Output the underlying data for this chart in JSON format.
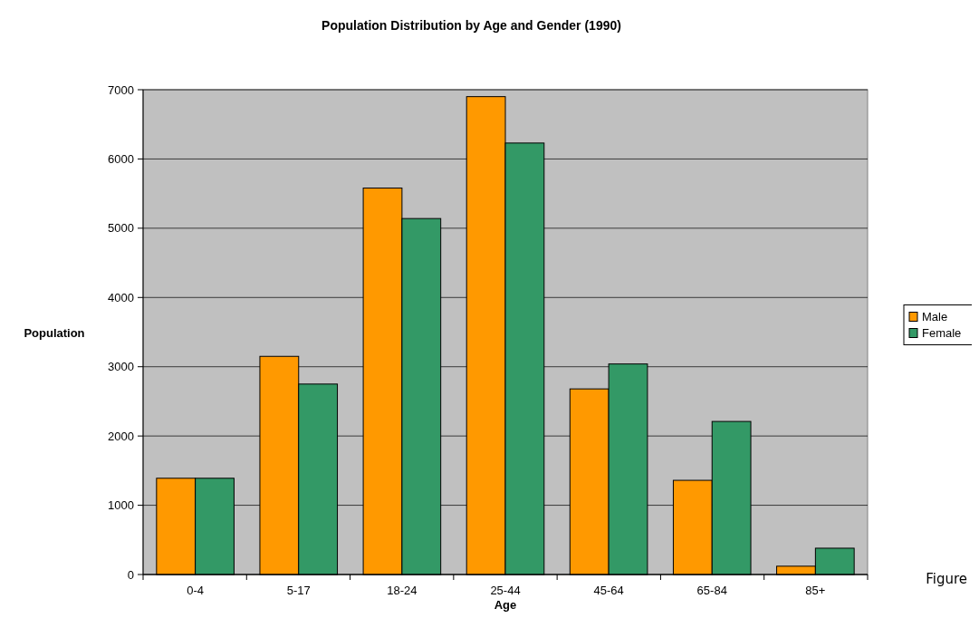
{
  "chart_data": {
    "type": "bar",
    "title": "Population Distribution by Age and Gender (1990)",
    "xlabel": "Age",
    "ylabel": "Population",
    "categories": [
      "0-4",
      "5-17",
      "18-24",
      "25-44",
      "45-64",
      "65-84",
      "85+"
    ],
    "series": [
      {
        "name": "Male",
        "color": "#ff9900",
        "values": [
          1390,
          3150,
          5580,
          6900,
          2680,
          1360,
          120
        ]
      },
      {
        "name": "Female",
        "color": "#339966",
        "values": [
          1390,
          2750,
          5140,
          6230,
          3040,
          2210,
          380
        ]
      }
    ],
    "ylim": [
      0,
      7000
    ],
    "yticks": [
      0,
      1000,
      2000,
      3000,
      4000,
      5000,
      6000,
      7000
    ],
    "grid": "y",
    "legend": "right",
    "annotations": [
      "Figure"
    ]
  }
}
